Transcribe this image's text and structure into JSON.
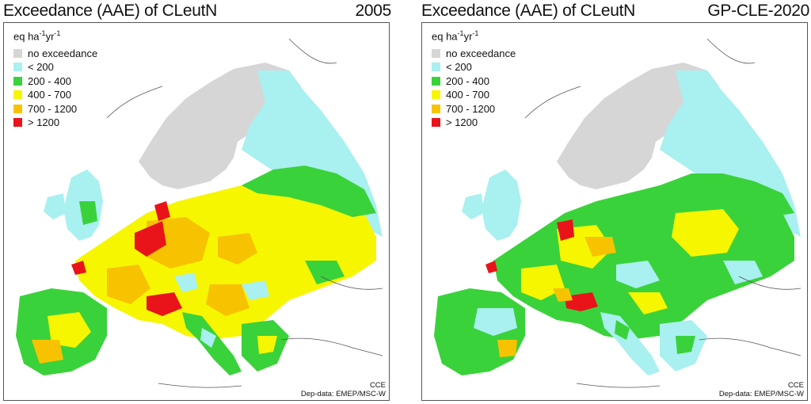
{
  "colors": {
    "no_exceedance": "#d6d6d6",
    "lt200": "#a9f0f0",
    "c200_400": "#3ad23a",
    "c400_700": "#f6f600",
    "c700_1200": "#f7c300",
    "gt1200": "#e8141a",
    "sea": "#ffffff",
    "land_no_data": "#ffffff"
  },
  "panels": [
    {
      "title": "Exceedance (AAE) of CLeutN",
      "label": "2005",
      "unit_prefix": "eq ha",
      "unit_exp1": "-1",
      "unit_mid": "yr",
      "unit_exp2": "-1",
      "legend": [
        "no exceedance",
        "< 200",
        "200 - 400",
        "400 - 700",
        "700 - 1200",
        "> 1200"
      ],
      "credit1": "CCE",
      "credit2": "Dep-data: EMEP/MSC-W"
    },
    {
      "title": "Exceedance (AAE) of CLeutN",
      "label": "GP-CLE-2020",
      "unit_prefix": "eq ha",
      "unit_exp1": "-1",
      "unit_mid": "yr",
      "unit_exp2": "-1",
      "legend": [
        "no exceedance",
        "< 200",
        "200 - 400",
        "400 - 700",
        "700 - 1200",
        "> 1200"
      ],
      "credit1": "CCE",
      "credit2": "Dep-data: EMEP/MSC-W"
    }
  ]
}
